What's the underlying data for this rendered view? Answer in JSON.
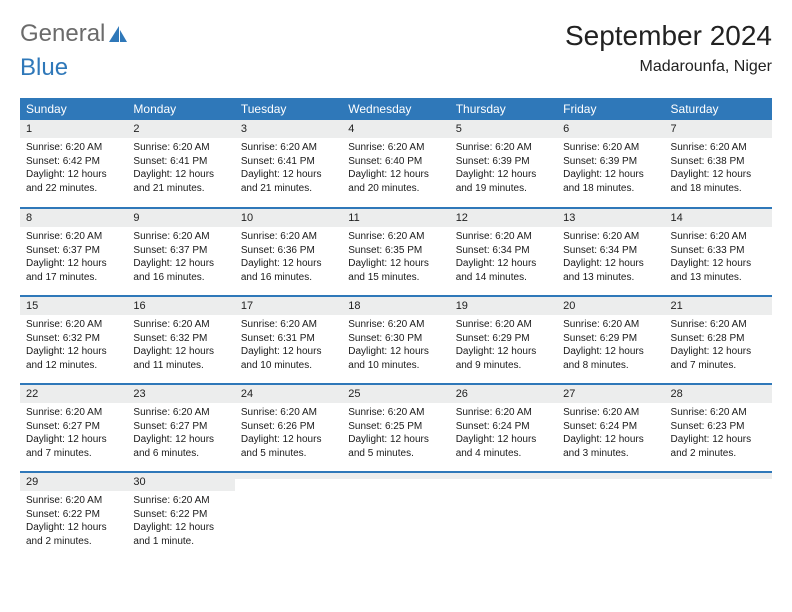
{
  "brand": {
    "name1": "General",
    "name2": "Blue",
    "logo_color": "#2f78b9",
    "text_color": "#6b6b6b"
  },
  "title": "September 2024",
  "location": "Madarounfa, Niger",
  "colors": {
    "header_bg": "#2f78b9",
    "header_text": "#ffffff",
    "daynum_bg": "#eceded",
    "row_divider": "#2f78b9",
    "body_text": "#1a1a1a"
  },
  "typography": {
    "month_title_fontsize": 28,
    "location_fontsize": 16,
    "dayheader_fontsize": 12,
    "daynum_fontsize": 11,
    "cell_fontsize": 10
  },
  "day_headers": [
    "Sunday",
    "Monday",
    "Tuesday",
    "Wednesday",
    "Thursday",
    "Friday",
    "Saturday"
  ],
  "weeks": [
    [
      {
        "n": "1",
        "sunrise": "Sunrise: 6:20 AM",
        "sunset": "Sunset: 6:42 PM",
        "daylight": "Daylight: 12 hours and 22 minutes."
      },
      {
        "n": "2",
        "sunrise": "Sunrise: 6:20 AM",
        "sunset": "Sunset: 6:41 PM",
        "daylight": "Daylight: 12 hours and 21 minutes."
      },
      {
        "n": "3",
        "sunrise": "Sunrise: 6:20 AM",
        "sunset": "Sunset: 6:41 PM",
        "daylight": "Daylight: 12 hours and 21 minutes."
      },
      {
        "n": "4",
        "sunrise": "Sunrise: 6:20 AM",
        "sunset": "Sunset: 6:40 PM",
        "daylight": "Daylight: 12 hours and 20 minutes."
      },
      {
        "n": "5",
        "sunrise": "Sunrise: 6:20 AM",
        "sunset": "Sunset: 6:39 PM",
        "daylight": "Daylight: 12 hours and 19 minutes."
      },
      {
        "n": "6",
        "sunrise": "Sunrise: 6:20 AM",
        "sunset": "Sunset: 6:39 PM",
        "daylight": "Daylight: 12 hours and 18 minutes."
      },
      {
        "n": "7",
        "sunrise": "Sunrise: 6:20 AM",
        "sunset": "Sunset: 6:38 PM",
        "daylight": "Daylight: 12 hours and 18 minutes."
      }
    ],
    [
      {
        "n": "8",
        "sunrise": "Sunrise: 6:20 AM",
        "sunset": "Sunset: 6:37 PM",
        "daylight": "Daylight: 12 hours and 17 minutes."
      },
      {
        "n": "9",
        "sunrise": "Sunrise: 6:20 AM",
        "sunset": "Sunset: 6:37 PM",
        "daylight": "Daylight: 12 hours and 16 minutes."
      },
      {
        "n": "10",
        "sunrise": "Sunrise: 6:20 AM",
        "sunset": "Sunset: 6:36 PM",
        "daylight": "Daylight: 12 hours and 16 minutes."
      },
      {
        "n": "11",
        "sunrise": "Sunrise: 6:20 AM",
        "sunset": "Sunset: 6:35 PM",
        "daylight": "Daylight: 12 hours and 15 minutes."
      },
      {
        "n": "12",
        "sunrise": "Sunrise: 6:20 AM",
        "sunset": "Sunset: 6:34 PM",
        "daylight": "Daylight: 12 hours and 14 minutes."
      },
      {
        "n": "13",
        "sunrise": "Sunrise: 6:20 AM",
        "sunset": "Sunset: 6:34 PM",
        "daylight": "Daylight: 12 hours and 13 minutes."
      },
      {
        "n": "14",
        "sunrise": "Sunrise: 6:20 AM",
        "sunset": "Sunset: 6:33 PM",
        "daylight": "Daylight: 12 hours and 13 minutes."
      }
    ],
    [
      {
        "n": "15",
        "sunrise": "Sunrise: 6:20 AM",
        "sunset": "Sunset: 6:32 PM",
        "daylight": "Daylight: 12 hours and 12 minutes."
      },
      {
        "n": "16",
        "sunrise": "Sunrise: 6:20 AM",
        "sunset": "Sunset: 6:32 PM",
        "daylight": "Daylight: 12 hours and 11 minutes."
      },
      {
        "n": "17",
        "sunrise": "Sunrise: 6:20 AM",
        "sunset": "Sunset: 6:31 PM",
        "daylight": "Daylight: 12 hours and 10 minutes."
      },
      {
        "n": "18",
        "sunrise": "Sunrise: 6:20 AM",
        "sunset": "Sunset: 6:30 PM",
        "daylight": "Daylight: 12 hours and 10 minutes."
      },
      {
        "n": "19",
        "sunrise": "Sunrise: 6:20 AM",
        "sunset": "Sunset: 6:29 PM",
        "daylight": "Daylight: 12 hours and 9 minutes."
      },
      {
        "n": "20",
        "sunrise": "Sunrise: 6:20 AM",
        "sunset": "Sunset: 6:29 PM",
        "daylight": "Daylight: 12 hours and 8 minutes."
      },
      {
        "n": "21",
        "sunrise": "Sunrise: 6:20 AM",
        "sunset": "Sunset: 6:28 PM",
        "daylight": "Daylight: 12 hours and 7 minutes."
      }
    ],
    [
      {
        "n": "22",
        "sunrise": "Sunrise: 6:20 AM",
        "sunset": "Sunset: 6:27 PM",
        "daylight": "Daylight: 12 hours and 7 minutes."
      },
      {
        "n": "23",
        "sunrise": "Sunrise: 6:20 AM",
        "sunset": "Sunset: 6:27 PM",
        "daylight": "Daylight: 12 hours and 6 minutes."
      },
      {
        "n": "24",
        "sunrise": "Sunrise: 6:20 AM",
        "sunset": "Sunset: 6:26 PM",
        "daylight": "Daylight: 12 hours and 5 minutes."
      },
      {
        "n": "25",
        "sunrise": "Sunrise: 6:20 AM",
        "sunset": "Sunset: 6:25 PM",
        "daylight": "Daylight: 12 hours and 5 minutes."
      },
      {
        "n": "26",
        "sunrise": "Sunrise: 6:20 AM",
        "sunset": "Sunset: 6:24 PM",
        "daylight": "Daylight: 12 hours and 4 minutes."
      },
      {
        "n": "27",
        "sunrise": "Sunrise: 6:20 AM",
        "sunset": "Sunset: 6:24 PM",
        "daylight": "Daylight: 12 hours and 3 minutes."
      },
      {
        "n": "28",
        "sunrise": "Sunrise: 6:20 AM",
        "sunset": "Sunset: 6:23 PM",
        "daylight": "Daylight: 12 hours and 2 minutes."
      }
    ],
    [
      {
        "n": "29",
        "sunrise": "Sunrise: 6:20 AM",
        "sunset": "Sunset: 6:22 PM",
        "daylight": "Daylight: 12 hours and 2 minutes."
      },
      {
        "n": "30",
        "sunrise": "Sunrise: 6:20 AM",
        "sunset": "Sunset: 6:22 PM",
        "daylight": "Daylight: 12 hours and 1 minute."
      },
      {
        "n": "",
        "sunrise": "",
        "sunset": "",
        "daylight": ""
      },
      {
        "n": "",
        "sunrise": "",
        "sunset": "",
        "daylight": ""
      },
      {
        "n": "",
        "sunrise": "",
        "sunset": "",
        "daylight": ""
      },
      {
        "n": "",
        "sunrise": "",
        "sunset": "",
        "daylight": ""
      },
      {
        "n": "",
        "sunrise": "",
        "sunset": "",
        "daylight": ""
      }
    ]
  ]
}
